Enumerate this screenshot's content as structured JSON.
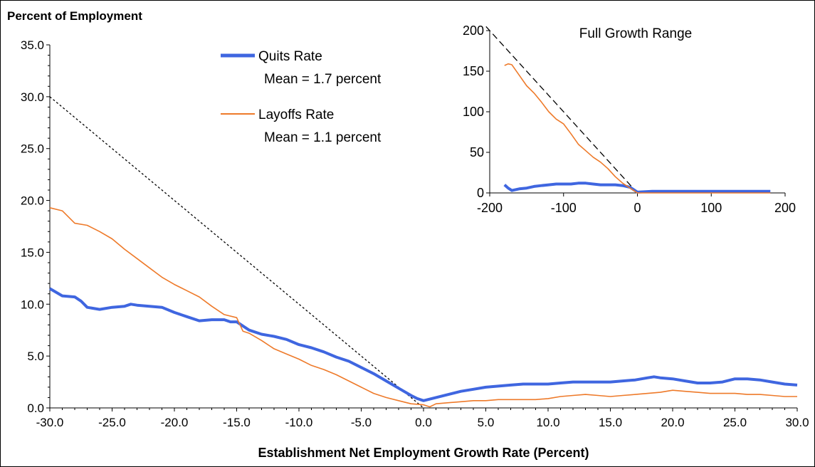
{
  "chart_data": [
    {
      "type": "line",
      "title": "",
      "ylabel": "Percent of Employment",
      "xlabel": "Establishment Net Employment Growth Rate (Percent)",
      "xlim": [
        -30,
        30
      ],
      "ylim": [
        0,
        35
      ],
      "xticks": [
        "-30.0",
        "-25.0",
        "-20.0",
        "-15.0",
        "-10.0",
        "-5.0",
        "0.0",
        "5.0",
        "10.0",
        "15.0",
        "20.0",
        "25.0",
        "30.0"
      ],
      "yticks": [
        "0.0",
        "5.0",
        "10.0",
        "15.0",
        "20.0",
        "25.0",
        "30.0",
        "35.0"
      ],
      "grid": false,
      "legend_position": "top-center",
      "series": [
        {
          "name": "Quits Rate",
          "note": "Mean = 1.7 percent",
          "color": "#3f66e0",
          "x": [
            -30,
            -29,
            -28,
            -27.5,
            -27,
            -26,
            -25,
            -24,
            -23.5,
            -23,
            -22,
            -21,
            -20,
            -19,
            -18,
            -17,
            -16,
            -15.5,
            -15,
            -14,
            -13,
            -12,
            -11,
            -10,
            -9,
            -8,
            -7,
            -6,
            -5,
            -4,
            -3,
            -2,
            -1,
            -0.5,
            0,
            1,
            2,
            3,
            4,
            5,
            6,
            7,
            8,
            9,
            10,
            11,
            12,
            13,
            14,
            15,
            16,
            17,
            18,
            18.5,
            19,
            20,
            21,
            22,
            23,
            24,
            25,
            26,
            27,
            28,
            29,
            30
          ],
          "y": [
            11.5,
            10.8,
            10.7,
            10.3,
            9.7,
            9.5,
            9.7,
            9.8,
            10.0,
            9.9,
            9.8,
            9.7,
            9.2,
            8.8,
            8.4,
            8.5,
            8.5,
            8.3,
            8.3,
            7.5,
            7.1,
            6.9,
            6.6,
            6.1,
            5.8,
            5.4,
            4.9,
            4.5,
            3.9,
            3.3,
            2.6,
            1.9,
            1.2,
            0.9,
            0.7,
            1.0,
            1.3,
            1.6,
            1.8,
            2.0,
            2.1,
            2.2,
            2.3,
            2.3,
            2.3,
            2.4,
            2.5,
            2.5,
            2.5,
            2.5,
            2.6,
            2.7,
            2.9,
            3.0,
            2.9,
            2.8,
            2.6,
            2.4,
            2.4,
            2.5,
            2.8,
            2.8,
            2.7,
            2.5,
            2.3,
            2.2
          ]
        },
        {
          "name": "Layoffs Rate",
          "note": "Mean = 1.1 percent",
          "color": "#ee7a2a",
          "x": [
            -30,
            -29,
            -28,
            -27,
            -26,
            -25,
            -24,
            -23,
            -22,
            -21,
            -20,
            -19,
            -18,
            -17,
            -16,
            -15,
            -14.5,
            -14,
            -13,
            -12,
            -11,
            -10,
            -9,
            -8,
            -7,
            -6,
            -5,
            -4,
            -3,
            -2,
            -1,
            0,
            0.5,
            1,
            2,
            3,
            4,
            5,
            6,
            7,
            8,
            9,
            10,
            11,
            12,
            13,
            14,
            15,
            16,
            17,
            18,
            19,
            20,
            21,
            22,
            23,
            24,
            25,
            26,
            27,
            28,
            29,
            30
          ],
          "y": [
            19.3,
            19.0,
            17.8,
            17.6,
            17.0,
            16.3,
            15.3,
            14.4,
            13.5,
            12.6,
            11.9,
            11.3,
            10.7,
            9.8,
            9.0,
            8.7,
            7.4,
            7.2,
            6.5,
            5.7,
            5.2,
            4.7,
            4.1,
            3.7,
            3.2,
            2.6,
            2.0,
            1.4,
            1.0,
            0.7,
            0.4,
            0.3,
            0.1,
            0.4,
            0.5,
            0.6,
            0.7,
            0.7,
            0.8,
            0.8,
            0.8,
            0.8,
            0.9,
            1.1,
            1.2,
            1.3,
            1.2,
            1.1,
            1.2,
            1.3,
            1.4,
            1.5,
            1.7,
            1.6,
            1.5,
            1.4,
            1.4,
            1.4,
            1.3,
            1.3,
            1.2,
            1.1,
            1.1
          ]
        }
      ],
      "reference_line": {
        "style": "dotted",
        "x": [
          -30,
          0
        ],
        "y": [
          30,
          0
        ]
      }
    },
    {
      "type": "line",
      "title": "Full Growth Range",
      "xlim": [
        -200,
        200
      ],
      "ylim": [
        0,
        200
      ],
      "xticks": [
        "-200",
        "-100",
        "0",
        "100",
        "200"
      ],
      "yticks": [
        "0",
        "50",
        "100",
        "150",
        "200"
      ],
      "grid": false,
      "series": [
        {
          "name": "Quits Rate",
          "color": "#3f66e0",
          "x": [
            -180,
            -175,
            -170,
            -165,
            -160,
            -150,
            -140,
            -130,
            -120,
            -110,
            -100,
            -90,
            -80,
            -70,
            -60,
            -50,
            -40,
            -30,
            -20,
            -10,
            -5,
            0,
            20,
            40,
            60,
            80,
            100,
            120,
            140,
            160,
            180
          ],
          "y": [
            10,
            6,
            3,
            4,
            5,
            6,
            8,
            9,
            10,
            11,
            11,
            11,
            12,
            12,
            11,
            10,
            10,
            10,
            9,
            7,
            4,
            1,
            2,
            2,
            2,
            2,
            2,
            2,
            2,
            2,
            2
          ]
        },
        {
          "name": "Layoffs Rate",
          "color": "#ee7a2a",
          "x": [
            -180,
            -175,
            -170,
            -160,
            -150,
            -140,
            -130,
            -120,
            -110,
            -100,
            -90,
            -80,
            -70,
            -60,
            -50,
            -40,
            -30,
            -20,
            -10,
            0,
            20,
            40,
            60,
            80,
            100,
            120,
            140,
            160,
            180
          ],
          "y": [
            157,
            159,
            158,
            145,
            132,
            123,
            112,
            100,
            91,
            85,
            73,
            60,
            52,
            44,
            38,
            30,
            20,
            12,
            6,
            0,
            0,
            0,
            0,
            0,
            0,
            0,
            0,
            0,
            0
          ]
        }
      ],
      "reference_line": {
        "style": "dashed",
        "x": [
          -205,
          0
        ],
        "y": [
          205,
          0
        ]
      }
    }
  ]
}
